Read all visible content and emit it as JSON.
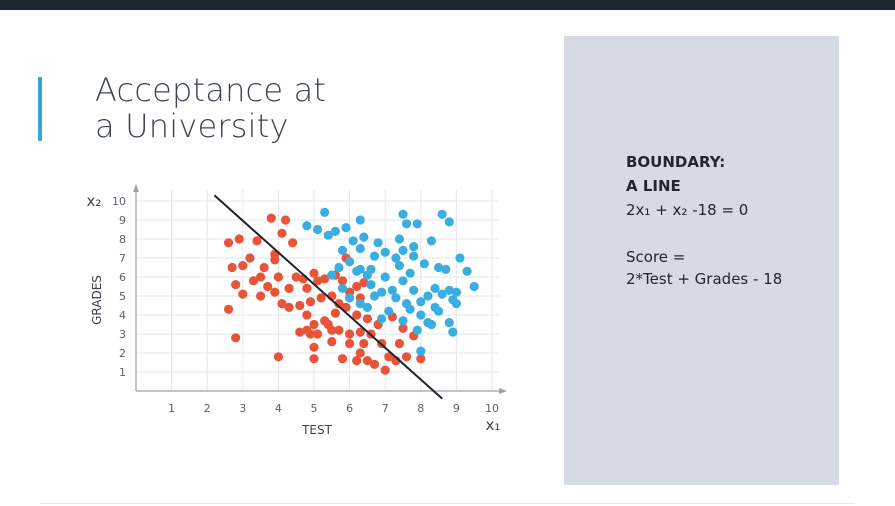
{
  "slide": {
    "title_line1": "Acceptance at",
    "title_line2": "a University"
  },
  "panel": {
    "heading1": "BOUNDARY:",
    "heading2": "A LINE",
    "equation": "2x₁ + x₂ -18 = 0",
    "score_label": "Score =",
    "score_formula": "2*Test + Grades - 18"
  },
  "colors": {
    "rejected": "#e8543a",
    "accepted": "#3aaee0",
    "boundary": "#1e232b",
    "accent": "#3aa3d8",
    "panel_bg": "#d6dae4"
  },
  "chart_data": {
    "type": "scatter",
    "xlabel": "TEST",
    "ylabel": "GRADES",
    "x_axis_symbol": "x₁",
    "y_axis_symbol": "x₂",
    "xlim": [
      0,
      10
    ],
    "ylim": [
      0,
      10
    ],
    "x_ticks": [
      "1",
      "2",
      "3",
      "4",
      "5",
      "6",
      "7",
      "8",
      "9",
      "10"
    ],
    "y_ticks": [
      "1",
      "2",
      "3",
      "4",
      "5",
      "6",
      "7",
      "8",
      "9",
      "10"
    ],
    "grid": true,
    "boundary_line": {
      "equation": "2x1 + x2 - 18 = 0",
      "x": [
        2.2,
        8.6
      ],
      "y": [
        10.3,
        -0.4
      ]
    },
    "series": [
      {
        "role": "rejected",
        "points": [
          [
            2.6,
            7.8
          ],
          [
            2.9,
            8.0
          ],
          [
            3.0,
            6.6
          ],
          [
            2.7,
            6.5
          ],
          [
            2.8,
            5.6
          ],
          [
            3.2,
            7.0
          ],
          [
            3.4,
            7.9
          ],
          [
            3.6,
            6.5
          ],
          [
            3.3,
            5.8
          ],
          [
            3.5,
            6.0
          ],
          [
            3.9,
            7.2
          ],
          [
            4.0,
            6.0
          ],
          [
            4.1,
            8.3
          ],
          [
            3.8,
            9.1
          ],
          [
            4.2,
            9.0
          ],
          [
            3.9,
            6.9
          ],
          [
            4.4,
            7.8
          ],
          [
            4.5,
            6.0
          ],
          [
            4.7,
            5.9
          ],
          [
            5.0,
            6.2
          ],
          [
            4.8,
            5.4
          ],
          [
            5.1,
            5.8
          ],
          [
            5.3,
            5.9
          ],
          [
            5.6,
            6.1
          ],
          [
            5.8,
            5.8
          ],
          [
            5.9,
            7.0
          ],
          [
            6.2,
            5.5
          ],
          [
            6.4,
            5.7
          ],
          [
            6.0,
            5.2
          ],
          [
            6.3,
            4.9
          ],
          [
            5.5,
            5.0
          ],
          [
            5.7,
            4.6
          ],
          [
            4.9,
            4.7
          ],
          [
            5.2,
            4.9
          ],
          [
            4.6,
            4.5
          ],
          [
            4.3,
            4.4
          ],
          [
            4.1,
            4.6
          ],
          [
            3.5,
            5.0
          ],
          [
            3.0,
            5.1
          ],
          [
            2.6,
            4.3
          ],
          [
            4.8,
            4.0
          ],
          [
            5.0,
            3.5
          ],
          [
            5.3,
            3.7
          ],
          [
            5.6,
            4.1
          ],
          [
            5.9,
            4.4
          ],
          [
            6.2,
            4.0
          ],
          [
            6.5,
            3.8
          ],
          [
            6.8,
            3.5
          ],
          [
            7.2,
            3.9
          ],
          [
            7.5,
            3.3
          ],
          [
            7.8,
            2.9
          ],
          [
            6.9,
            2.5
          ],
          [
            6.6,
            3.0
          ],
          [
            6.3,
            3.1
          ],
          [
            6.0,
            3.0
          ],
          [
            5.7,
            3.2
          ],
          [
            5.4,
            3.5
          ],
          [
            5.1,
            3.0
          ],
          [
            4.9,
            3.0
          ],
          [
            5.0,
            2.3
          ],
          [
            5.5,
            2.6
          ],
          [
            6.0,
            2.5
          ],
          [
            6.3,
            2.0
          ],
          [
            6.5,
            1.6
          ],
          [
            6.7,
            1.4
          ],
          [
            7.1,
            1.8
          ],
          [
            7.3,
            1.6
          ],
          [
            7.6,
            1.8
          ],
          [
            8.0,
            1.7
          ],
          [
            7.0,
            1.1
          ],
          [
            6.2,
            1.6
          ],
          [
            5.8,
            1.7
          ],
          [
            5.0,
            1.7
          ],
          [
            4.0,
            1.8
          ],
          [
            2.8,
            2.8
          ],
          [
            4.6,
            3.1
          ],
          [
            4.8,
            3.2
          ],
          [
            5.5,
            3.2
          ],
          [
            6.4,
            2.5
          ],
          [
            7.4,
            2.5
          ],
          [
            3.7,
            5.5
          ],
          [
            3.9,
            5.2
          ],
          [
            4.3,
            5.4
          ]
        ]
      },
      {
        "role": "accepted",
        "points": [
          [
            5.3,
            9.4
          ],
          [
            6.3,
            9.0
          ],
          [
            7.5,
            9.3
          ],
          [
            8.6,
            9.3
          ],
          [
            8.8,
            8.9
          ],
          [
            7.6,
            8.8
          ],
          [
            7.9,
            8.8
          ],
          [
            4.8,
            8.7
          ],
          [
            5.1,
            8.5
          ],
          [
            5.4,
            8.2
          ],
          [
            5.6,
            8.4
          ],
          [
            5.9,
            8.6
          ],
          [
            6.1,
            7.9
          ],
          [
            6.4,
            8.1
          ],
          [
            6.8,
            7.8
          ],
          [
            7.4,
            8.0
          ],
          [
            8.3,
            7.9
          ],
          [
            7.8,
            7.6
          ],
          [
            7.5,
            7.4
          ],
          [
            7.0,
            7.3
          ],
          [
            7.3,
            7.0
          ],
          [
            7.8,
            7.1
          ],
          [
            8.1,
            6.7
          ],
          [
            8.5,
            6.5
          ],
          [
            8.7,
            6.4
          ],
          [
            9.1,
            7.0
          ],
          [
            9.3,
            6.3
          ],
          [
            9.5,
            5.5
          ],
          [
            9.0,
            5.2
          ],
          [
            8.9,
            4.8
          ],
          [
            8.5,
            4.2
          ],
          [
            8.0,
            4.0
          ],
          [
            7.6,
            4.6
          ],
          [
            7.3,
            4.9
          ],
          [
            6.9,
            5.2
          ],
          [
            6.6,
            5.6
          ],
          [
            6.5,
            6.1
          ],
          [
            6.3,
            6.4
          ],
          [
            6.0,
            6.8
          ],
          [
            5.7,
            6.5
          ],
          [
            5.5,
            6.1
          ],
          [
            6.2,
            6.3
          ],
          [
            6.6,
            6.4
          ],
          [
            7.0,
            6.0
          ],
          [
            7.5,
            5.8
          ],
          [
            7.8,
            5.3
          ],
          [
            8.0,
            4.7
          ],
          [
            8.2,
            5.0
          ],
          [
            8.4,
            5.4
          ],
          [
            8.6,
            5.1
          ],
          [
            8.8,
            5.3
          ],
          [
            9.0,
            4.6
          ],
          [
            8.3,
            3.5
          ],
          [
            7.9,
            3.2
          ],
          [
            7.5,
            3.7
          ],
          [
            7.1,
            4.2
          ],
          [
            6.9,
            3.8
          ],
          [
            7.7,
            4.3
          ],
          [
            8.0,
            2.1
          ],
          [
            8.8,
            3.6
          ],
          [
            8.9,
            3.1
          ],
          [
            6.5,
            4.4
          ],
          [
            6.3,
            4.6
          ],
          [
            6.0,
            4.9
          ],
          [
            5.8,
            5.4
          ],
          [
            6.7,
            5.0
          ],
          [
            7.2,
            5.3
          ],
          [
            7.4,
            6.6
          ],
          [
            6.7,
            7.1
          ],
          [
            6.3,
            7.5
          ],
          [
            5.8,
            7.4
          ],
          [
            8.4,
            4.4
          ],
          [
            7.7,
            6.2
          ],
          [
            8.2,
            3.6
          ]
        ]
      }
    ]
  }
}
